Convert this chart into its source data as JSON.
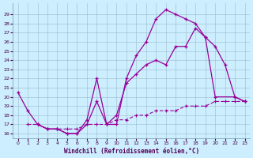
{
  "xlabel": "Windchill (Refroidissement éolien,°C)",
  "background_color": "#cceeff",
  "line_color": "#990099",
  "grid_color": "#99bbcc",
  "x_ticks": [
    0,
    1,
    2,
    3,
    4,
    5,
    6,
    7,
    8,
    9,
    10,
    11,
    12,
    13,
    14,
    15,
    16,
    17,
    18,
    19,
    20,
    21,
    22,
    23
  ],
  "y_ticks": [
    16,
    17,
    18,
    19,
    20,
    21,
    22,
    23,
    24,
    25,
    26,
    27,
    28,
    29
  ],
  "ylim": [
    15.5,
    30.2
  ],
  "xlim": [
    -0.5,
    23.5
  ],
  "s1x": [
    0,
    1,
    2,
    3,
    4,
    5,
    6,
    7,
    8,
    9,
    10,
    11,
    12,
    13,
    14,
    15,
    16,
    17,
    18,
    19,
    20,
    22,
    23
  ],
  "s1y": [
    20.5,
    18.5,
    17.0,
    16.5,
    16.5,
    16.0,
    16.0,
    17.5,
    22.0,
    17.0,
    17.0,
    22.0,
    24.5,
    26.0,
    28.5,
    29.5,
    29.0,
    28.5,
    28.0,
    26.5,
    20.0,
    20.0,
    19.5
  ],
  "s2x": [
    2,
    3,
    4,
    5,
    6,
    7,
    8,
    9,
    10,
    11,
    12,
    13,
    14,
    15,
    16,
    17,
    18,
    19,
    20,
    21,
    22,
    23
  ],
  "s2y": [
    17.0,
    16.5,
    16.5,
    16.0,
    16.0,
    17.0,
    19.5,
    17.0,
    18.0,
    21.5,
    22.5,
    23.5,
    24.0,
    23.5,
    25.5,
    25.5,
    27.5,
    26.5,
    25.5,
    23.5,
    20.0,
    19.5
  ],
  "s3x": [
    1,
    2,
    3,
    4,
    5,
    6,
    7,
    8,
    9,
    10,
    11,
    12,
    13,
    14,
    15,
    16,
    17,
    18,
    19,
    20,
    21,
    22,
    23
  ],
  "s3y": [
    17.0,
    17.0,
    16.5,
    16.5,
    16.5,
    16.5,
    17.0,
    17.0,
    17.0,
    17.5,
    17.5,
    18.0,
    18.0,
    18.5,
    18.5,
    18.5,
    19.0,
    19.0,
    19.0,
    19.5,
    19.5,
    19.5,
    19.5
  ]
}
